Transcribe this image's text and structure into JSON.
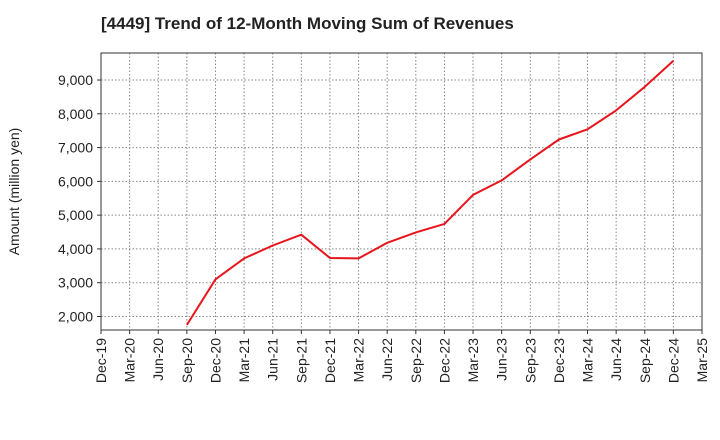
{
  "chart_data": {
    "type": "line",
    "title": "[4449]  Trend of 12-Month Moving Sum of Revenues",
    "ylabel": "Amount (million yen)",
    "xlabel": "",
    "x_tick_labels": [
      "Dec-19",
      "Mar-20",
      "Jun-20",
      "Sep-20",
      "Dec-20",
      "Mar-21",
      "Jun-21",
      "Sep-21",
      "Dec-21",
      "Mar-22",
      "Jun-22",
      "Sep-22",
      "Dec-22",
      "Mar-23",
      "Jun-23",
      "Sep-23",
      "Dec-23",
      "Mar-24",
      "Jun-24",
      "Sep-24",
      "Dec-24",
      "Mar-25"
    ],
    "y_ticks": [
      2000,
      3000,
      4000,
      5000,
      6000,
      7000,
      8000,
      9000
    ],
    "y_tick_labels": [
      "2,000",
      "3,000",
      "4,000",
      "5,000",
      "6,000",
      "7,000",
      "8,000",
      "9,000"
    ],
    "ylim": [
      1600,
      9800
    ],
    "grid": true,
    "series": [
      {
        "color": "#e8141c",
        "x": [
          "Sep-20",
          "Dec-20",
          "Mar-21",
          "Jun-21",
          "Sep-21",
          "Dec-21",
          "Mar-22",
          "Jun-22",
          "Sep-22",
          "Dec-22",
          "Mar-23",
          "Jun-23",
          "Sep-23",
          "Dec-23",
          "Mar-24",
          "Jun-24",
          "Sep-24",
          "Dec-24"
        ],
        "values": [
          1750,
          3100,
          3720,
          4100,
          4420,
          3730,
          3720,
          4180,
          4490,
          4740,
          5600,
          6030,
          6650,
          7240,
          7540,
          8100,
          8800,
          9570
        ]
      }
    ]
  }
}
